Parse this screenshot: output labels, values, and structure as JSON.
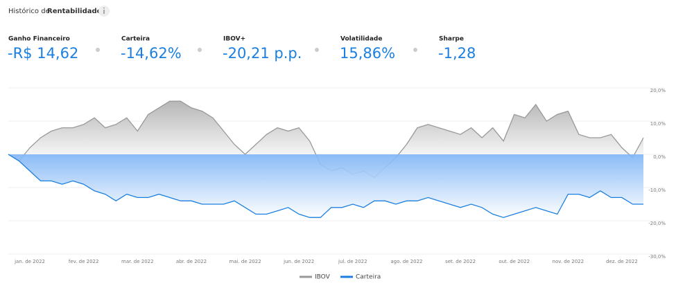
{
  "header": {
    "title_prefix": "Histórico de",
    "title_bold": "Rentabilidade"
  },
  "metrics": [
    {
      "label": "Ganho Financeiro",
      "value": "-R$ 14,62"
    },
    {
      "label": "Carteira",
      "value": "-14,62%"
    },
    {
      "label": "IBOV+",
      "value": "-20,21 p.p."
    },
    {
      "label": "Volatilidade",
      "value": "15,86%"
    },
    {
      "label": "Sharpe",
      "value": "-1,28"
    }
  ],
  "chart_data": {
    "type": "area",
    "categories": [
      null,
      null,
      "jan. de 2022",
      null,
      null,
      null,
      null,
      "fev. de 2022",
      null,
      null,
      null,
      null,
      "mar. de 2022",
      null,
      null,
      null,
      null,
      "abr. de 2022",
      null,
      null,
      null,
      null,
      "mai. de 2022",
      null,
      null,
      null,
      null,
      "jun. de 2022",
      null,
      null,
      null,
      null,
      "jul. de 2022",
      null,
      null,
      null,
      null,
      "ago. de 2022",
      null,
      null,
      null,
      null,
      "set. de 2022",
      null,
      null,
      null,
      null,
      "out. de 2022",
      null,
      null,
      null,
      null,
      "nov. de 2022",
      null,
      null,
      null,
      null,
      "dez. de 2022",
      null,
      null
    ],
    "series": [
      {
        "name": "IBOV",
        "color": "#999999",
        "values": [
          0,
          -2,
          2,
          5,
          7,
          8,
          8,
          9,
          11,
          8,
          9,
          11,
          7,
          12,
          14,
          16,
          16,
          14,
          13,
          11,
          7,
          3,
          0,
          3,
          6,
          8,
          7,
          8,
          4,
          -3,
          -5,
          -4,
          -6,
          -5,
          -7,
          -4,
          -1,
          3,
          8,
          9,
          8,
          7,
          6,
          8,
          5,
          8,
          4,
          12,
          11,
          15,
          10,
          12,
          13,
          6,
          5,
          5,
          6,
          2,
          -1,
          5
        ]
      },
      {
        "name": "Carteira",
        "color": "#1a7fe0",
        "values": [
          0,
          -2,
          -5,
          -8,
          -8,
          -9,
          -8,
          -9,
          -11,
          -12,
          -14,
          -12,
          -13,
          -13,
          -12,
          -13,
          -14,
          -14,
          -15,
          -15,
          -15,
          -14,
          -16,
          -18,
          -18,
          -17,
          -16,
          -18,
          -19,
          -19,
          -16,
          -16,
          -15,
          -16,
          -14,
          -14,
          -15,
          -14,
          -14,
          -13,
          -14,
          -15,
          -16,
          -15,
          -16,
          -18,
          -19,
          -18,
          -17,
          -16,
          -17,
          -18,
          -12,
          -12,
          -13,
          -11,
          -13,
          -13,
          -15,
          -15
        ]
      }
    ],
    "ylim": [
      -30,
      20
    ],
    "yticks": [
      {
        "value": -30,
        "label": "-30,0%"
      },
      {
        "value": -20,
        "label": "-20,0%"
      },
      {
        "value": -10,
        "label": "-10,0%"
      },
      {
        "value": 0,
        "label": "0,0%"
      },
      {
        "value": 10,
        "label": "10,0%"
      },
      {
        "value": 20,
        "label": "20,0%"
      }
    ],
    "grid": true,
    "legend": "bottom"
  }
}
